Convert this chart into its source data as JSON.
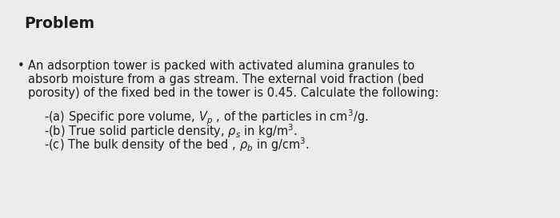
{
  "background_color": "#ececec",
  "title": "Problem",
  "title_fontsize": 13.5,
  "title_fontweight": "bold",
  "bullet_text_line1": "An adsorption tower is packed with activated alumina granules to",
  "bullet_text_line2": "absorb moisture from a gas stream. The external void fraction (bed",
  "bullet_text_line3": "porosity) of the fixed bed in the tower is 0.45. Calculate the following:",
  "font_size": 10.5,
  "text_color": "#1c1c1c",
  "sub_line1": "-(a) Specific pore volume, $V_p$ , of the particles in cm$^3$/g.",
  "sub_line2": "-(b) True solid particle density, $\\rho_s$ in kg/m$^3$.",
  "sub_line3": "-(c) The bulk density of the bed , $\\rho_b$ in g/cm$^3$."
}
